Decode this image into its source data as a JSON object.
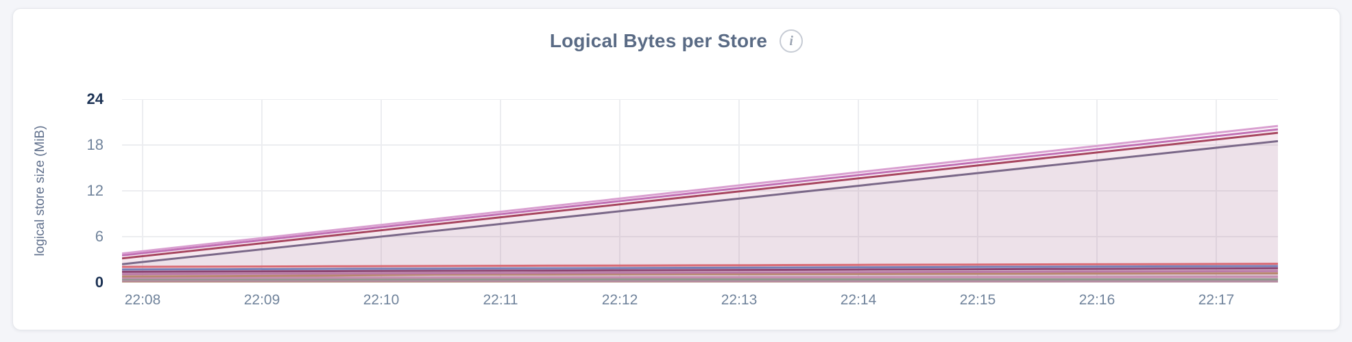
{
  "header": {
    "info_glyph": "i"
  },
  "chart_data": {
    "type": "area",
    "title": "Logical Bytes per Store",
    "ylabel": "logical store size (MiB)",
    "xlabel": "",
    "ylim": [
      0,
      24
    ],
    "grid": {
      "y_values": [
        6,
        12,
        18,
        24
      ],
      "on": true
    },
    "legend": "none",
    "x_ticks": [
      "22:08",
      "22:09",
      "22:10",
      "22:11",
      "22:12",
      "22:13",
      "22:14",
      "22:15",
      "22:16",
      "22:17"
    ],
    "y_ticks": [
      {
        "label": "24",
        "value": 24,
        "emphasis": true
      },
      {
        "label": "18",
        "value": 18,
        "emphasis": false
      },
      {
        "label": "12",
        "value": 12,
        "emphasis": false
      },
      {
        "label": "6",
        "value": 6,
        "emphasis": false
      },
      {
        "label": "0",
        "value": 0,
        "emphasis": true
      }
    ],
    "series": [
      {
        "name": "series-1-pale-orchid",
        "color": "#d99fd0",
        "values": [
          3.8,
          5.32,
          6.84,
          8.35,
          9.87,
          11.39,
          12.91,
          14.43,
          15.94,
          17.46,
          18.98,
          20.5
        ]
      },
      {
        "name": "series-2-orchid",
        "color": "#c06cb3",
        "values": [
          3.55,
          5.05,
          6.55,
          8.05,
          9.55,
          11.05,
          12.55,
          14.05,
          15.55,
          17.05,
          18.55,
          20.05
        ]
      },
      {
        "name": "series-3-maroon",
        "color": "#a23e54",
        "values": [
          3.15,
          4.65,
          6.14,
          7.64,
          9.13,
          10.63,
          12.12,
          13.62,
          15.11,
          16.61,
          18.1,
          19.6
        ]
      },
      {
        "name": "series-4-slate-purple",
        "color": "#6f6886",
        "values": [
          2.4,
          3.86,
          5.33,
          6.79,
          8.25,
          9.72,
          11.18,
          12.65,
          14.11,
          15.57,
          17.04,
          18.5
        ]
      },
      {
        "name": "series-5-salmon",
        "color": "#e56a6c",
        "values": [
          2.05,
          2.09,
          2.12,
          2.16,
          2.2,
          2.23,
          2.27,
          2.31,
          2.34,
          2.38,
          2.41,
          2.45
        ]
      },
      {
        "name": "series-6-blue",
        "color": "#6487c4",
        "values": [
          1.7,
          1.74,
          1.78,
          1.82,
          1.86,
          1.9,
          1.95,
          1.99,
          2.03,
          2.07,
          2.11,
          2.15
        ]
      },
      {
        "name": "series-7-dark-magenta",
        "color": "#833763",
        "values": [
          1.4,
          1.44,
          1.48,
          1.52,
          1.56,
          1.6,
          1.65,
          1.69,
          1.73,
          1.77,
          1.81,
          1.85
        ]
      },
      {
        "name": "series-8-pink",
        "color": "#c884b8",
        "values": [
          1.1,
          1.14,
          1.17,
          1.21,
          1.25,
          1.28,
          1.32,
          1.35,
          1.39,
          1.43,
          1.46,
          1.5
        ]
      },
      {
        "name": "series-9-tan",
        "color": "#c49b5e",
        "values": [
          0.8,
          0.84,
          0.9,
          1.04,
          1.06,
          1.08,
          1.1,
          1.12,
          1.14,
          1.16,
          1.18,
          1.2
        ]
      },
      {
        "name": "series-10-pale-pink",
        "color": "#d9a4c8",
        "values": [
          0.6,
          0.61,
          0.63,
          0.64,
          0.65,
          0.67,
          0.68,
          0.69,
          0.71,
          0.72,
          0.74,
          0.75
        ]
      },
      {
        "name": "series-11-green",
        "color": "#7eba8c",
        "values": [
          0.42,
          0.42,
          0.41,
          0.41,
          0.41,
          0.41,
          0.4,
          0.4,
          0.4,
          0.4,
          0.4,
          0.4
        ]
      },
      {
        "name": "series-12-mauve",
        "color": "#c2a3bc",
        "values": [
          0.25,
          0.24,
          0.23,
          0.22,
          0.21,
          0.2,
          0.19,
          0.18,
          0.17,
          0.16,
          0.16,
          0.15
        ]
      },
      {
        "name": "series-13-dark-tan",
        "color": "#bf975a",
        "values": [
          0.08,
          0.08,
          0.07,
          0.07,
          0.07,
          0.07,
          0.06,
          0.06,
          0.06,
          0.06,
          0.05,
          0.05
        ]
      }
    ]
  }
}
